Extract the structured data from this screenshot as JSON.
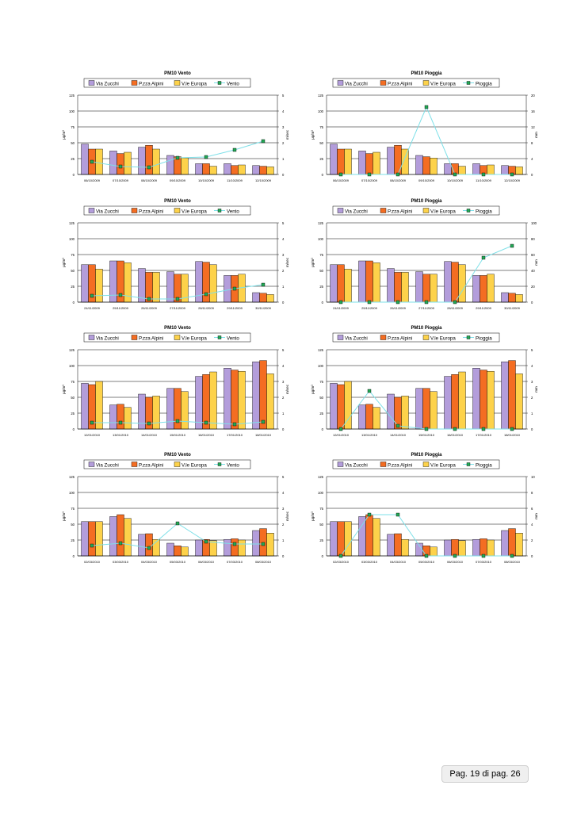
{
  "legend_bars": [
    "Via Zucchi",
    "P.zza Alpini",
    "V.le Europa"
  ],
  "colors": {
    "bar1": "#b39ddb",
    "bar2": "#f46d22",
    "bar3": "#fdd24a",
    "line": "#7ee0e8",
    "marker_fill": "#22aa55",
    "marker_border": "#000000",
    "bar_border": "#000000"
  },
  "left_unit": "μg/m³",
  "footer": "Pag. 19 di pag. 26",
  "chart_data": [
    {
      "type": "bar",
      "title": "PM10 Vento",
      "line_name": "Vento",
      "right_unit": "m/sec",
      "categories": [
        "06/10/2009",
        "07/10/2009",
        "08/10/2009",
        "09/10/2009",
        "10/10/2009",
        "11/10/2009",
        "12/10/2009"
      ],
      "series": [
        {
          "name": "Via Zucchi",
          "values": [
            48,
            37,
            43,
            30,
            17,
            17,
            14
          ]
        },
        {
          "name": "P.zza Alpini",
          "values": [
            40,
            33,
            46,
            28,
            17,
            14,
            13
          ]
        },
        {
          "name": "V.le Europa",
          "values": [
            40,
            35,
            40,
            26,
            13,
            15,
            12
          ]
        }
      ],
      "line_values": [
        0.8,
        0.5,
        0.45,
        1.05,
        1.1,
        1.55,
        2.1
      ],
      "ylim": [
        0,
        125
      ],
      "yticks": [
        0,
        25,
        50,
        75,
        100,
        125
      ],
      "y2lim": [
        0,
        5
      ],
      "y2ticks": [
        0,
        1,
        2,
        3,
        4,
        5
      ]
    },
    {
      "type": "bar",
      "title": "PM10 Pioggia",
      "line_name": "Pioggia",
      "right_unit": "mm",
      "categories": [
        "06/10/2009",
        "07/10/2009",
        "08/10/2009",
        "09/10/2009",
        "10/10/2009",
        "11/10/2009",
        "12/10/2009"
      ],
      "series": [
        {
          "name": "Via Zucchi",
          "values": [
            48,
            37,
            43,
            30,
            17,
            17,
            14
          ]
        },
        {
          "name": "P.zza Alpini",
          "values": [
            40,
            33,
            46,
            28,
            17,
            14,
            13
          ]
        },
        {
          "name": "V.le Europa",
          "values": [
            40,
            35,
            40,
            26,
            13,
            15,
            12
          ]
        }
      ],
      "line_values": [
        0,
        0,
        0,
        17,
        0,
        0,
        0
      ],
      "ylim": [
        0,
        125
      ],
      "yticks": [
        0,
        25,
        50,
        75,
        100,
        125
      ],
      "y2lim": [
        0,
        20
      ],
      "y2ticks": [
        0,
        4,
        8,
        12,
        16,
        20
      ]
    },
    {
      "type": "bar",
      "title": "PM10 Vento",
      "line_name": "Vento",
      "right_unit": "m/sec",
      "categories": [
        "24/11/2009",
        "25/11/2009",
        "26/11/2009",
        "27/11/2009",
        "28/11/2009",
        "29/11/2009",
        "30/11/2009"
      ],
      "series": [
        {
          "name": "Via Zucchi",
          "values": [
            59,
            65,
            53,
            48,
            64,
            42,
            15
          ]
        },
        {
          "name": "P.zza Alpini",
          "values": [
            59,
            65,
            47,
            44,
            63,
            42,
            14
          ]
        },
        {
          "name": "V.le Europa",
          "values": [
            52,
            62,
            47,
            44,
            59,
            44,
            12
          ]
        }
      ],
      "line_values": [
        0.4,
        0.45,
        0.2,
        0.2,
        0.5,
        0.85,
        1.1
      ],
      "ylim": [
        0,
        125
      ],
      "yticks": [
        0,
        25,
        50,
        75,
        100,
        125
      ],
      "y2lim": [
        0,
        5
      ],
      "y2ticks": [
        0,
        1,
        2,
        3,
        4,
        5
      ]
    },
    {
      "type": "bar",
      "title": "PM10 Pioggia",
      "line_name": "Pioggia",
      "right_unit": "mm",
      "categories": [
        "24/11/2009",
        "25/11/2009",
        "26/11/2009",
        "27/11/2009",
        "28/11/2009",
        "29/11/2009",
        "30/11/2009"
      ],
      "series": [
        {
          "name": "Via Zucchi",
          "values": [
            59,
            65,
            53,
            48,
            64,
            42,
            15
          ]
        },
        {
          "name": "P.zza Alpini",
          "values": [
            59,
            65,
            47,
            44,
            63,
            42,
            14
          ]
        },
        {
          "name": "V.le Europa",
          "values": [
            52,
            62,
            47,
            44,
            59,
            44,
            12
          ]
        }
      ],
      "line_values": [
        0,
        0,
        0,
        0,
        0,
        56,
        71
      ],
      "ylim": [
        0,
        125
      ],
      "yticks": [
        0,
        25,
        50,
        75,
        100,
        125
      ],
      "y2lim": [
        0,
        100
      ],
      "y2ticks": [
        0,
        20,
        40,
        60,
        80,
        100
      ]
    },
    {
      "type": "bar",
      "title": "PM10 Vento",
      "line_name": "Vento",
      "right_unit": "m/sec",
      "categories": [
        "12/01/2010",
        "13/01/2010",
        "14/01/2010",
        "15/01/2010",
        "16/01/2010",
        "17/01/2010",
        "18/01/2010"
      ],
      "series": [
        {
          "name": "Via Zucchi",
          "values": [
            72,
            38,
            55,
            64,
            83,
            96,
            106
          ]
        },
        {
          "name": "P.zza Alpini",
          "values": [
            70,
            39,
            50,
            64,
            86,
            93,
            108
          ]
        },
        {
          "name": "V.le Europa",
          "values": [
            75,
            34,
            52,
            59,
            90,
            91,
            87
          ]
        }
      ],
      "line_values": [
        0.4,
        0.4,
        0.35,
        0.5,
        0.4,
        0.3,
        0.45
      ],
      "ylim": [
        0,
        125
      ],
      "yticks": [
        0,
        25,
        50,
        75,
        100,
        125
      ],
      "y2lim": [
        0,
        5
      ],
      "y2ticks": [
        0,
        1,
        2,
        3,
        4,
        5
      ]
    },
    {
      "type": "bar",
      "title": "PM10 Pioggia",
      "line_name": "Pioggia",
      "right_unit": "mm",
      "categories": [
        "12/01/2010",
        "13/01/2010",
        "14/01/2010",
        "15/01/2010",
        "16/01/2010",
        "17/01/2010",
        "18/01/2010"
      ],
      "series": [
        {
          "name": "Via Zucchi",
          "values": [
            72,
            38,
            55,
            64,
            83,
            96,
            106
          ]
        },
        {
          "name": "P.zza Alpini",
          "values": [
            70,
            39,
            50,
            64,
            86,
            93,
            108
          ]
        },
        {
          "name": "V.le Europa",
          "values": [
            75,
            34,
            52,
            59,
            90,
            91,
            87
          ]
        }
      ],
      "line_values": [
        0,
        2.4,
        0.2,
        0,
        0,
        0,
        0
      ],
      "ylim": [
        0,
        125
      ],
      "yticks": [
        0,
        25,
        50,
        75,
        100,
        125
      ],
      "y2lim": [
        0,
        5
      ],
      "y2ticks": [
        0,
        1,
        2,
        3,
        4,
        5
      ]
    },
    {
      "type": "bar",
      "title": "PM10 Vento",
      "line_name": "Vento",
      "right_unit": "m/sec",
      "categories": [
        "02/03/2010",
        "03/03/2010",
        "04/03/2010",
        "05/03/2010",
        "06/03/2010",
        "07/03/2010",
        "08/03/2010"
      ],
      "series": [
        {
          "name": "Via Zucchi",
          "values": [
            54,
            62,
            34,
            20,
            25,
            26,
            40
          ]
        },
        {
          "name": "P.zza Alpini",
          "values": [
            54,
            65,
            35,
            16,
            26,
            27,
            43
          ]
        },
        {
          "name": "V.le Europa",
          "values": [
            54,
            59,
            26,
            14,
            24,
            25,
            36
          ]
        }
      ],
      "line_values": [
        0.65,
        0.8,
        0.5,
        2.05,
        0.9,
        0.75,
        0.75
      ],
      "ylim": [
        0,
        125
      ],
      "yticks": [
        0,
        25,
        50,
        75,
        100,
        125
      ],
      "y2lim": [
        0,
        5
      ],
      "y2ticks": [
        0,
        1,
        2,
        3,
        4,
        5
      ]
    },
    {
      "type": "bar",
      "title": "PM10 Pioggia",
      "line_name": "Pioggia",
      "right_unit": "mm",
      "categories": [
        "02/03/2010",
        "03/03/2010",
        "04/03/2010",
        "05/03/2010",
        "06/03/2010",
        "07/03/2010",
        "08/03/2010"
      ],
      "series": [
        {
          "name": "Via Zucchi",
          "values": [
            54,
            62,
            34,
            20,
            25,
            26,
            40
          ]
        },
        {
          "name": "P.zza Alpini",
          "values": [
            54,
            65,
            35,
            16,
            26,
            27,
            43
          ]
        },
        {
          "name": "V.le Europa",
          "values": [
            54,
            59,
            26,
            14,
            24,
            25,
            36
          ]
        }
      ],
      "line_values": [
        0,
        5.2,
        5.2,
        0,
        0,
        0,
        0
      ],
      "ylim": [
        0,
        125
      ],
      "yticks": [
        0,
        25,
        50,
        75,
        100,
        125
      ],
      "y2lim": [
        0,
        10
      ],
      "y2ticks": [
        0,
        2,
        4,
        6,
        8,
        10
      ]
    }
  ]
}
